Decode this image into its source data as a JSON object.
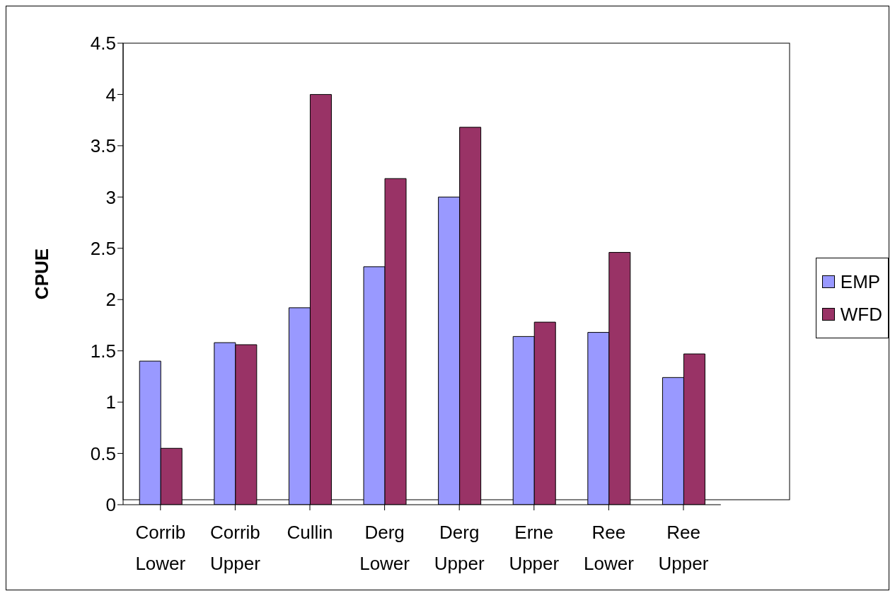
{
  "chart_data": {
    "type": "bar",
    "ylabel": "CPUE",
    "categories": [
      "Corrib Lower",
      "Corrib Upper",
      "Cullin",
      "Derg Lower",
      "Derg Upper",
      "Erne Upper",
      "Ree Lower",
      "Ree Upper"
    ],
    "series": [
      {
        "name": "EMP",
        "color": "#9999ff",
        "values": [
          1.4,
          1.58,
          1.92,
          2.32,
          3.0,
          1.64,
          1.68,
          1.24
        ]
      },
      {
        "name": "WFD",
        "color": "#993366",
        "values": [
          0.55,
          1.56,
          4.0,
          3.18,
          3.68,
          1.78,
          2.46,
          1.47
        ]
      }
    ],
    "ylim": [
      0,
      4.5
    ],
    "yticks": [
      0,
      0.5,
      1,
      1.5,
      2,
      2.5,
      3,
      3.5,
      4,
      4.5
    ],
    "grid": false,
    "legend": "right"
  }
}
